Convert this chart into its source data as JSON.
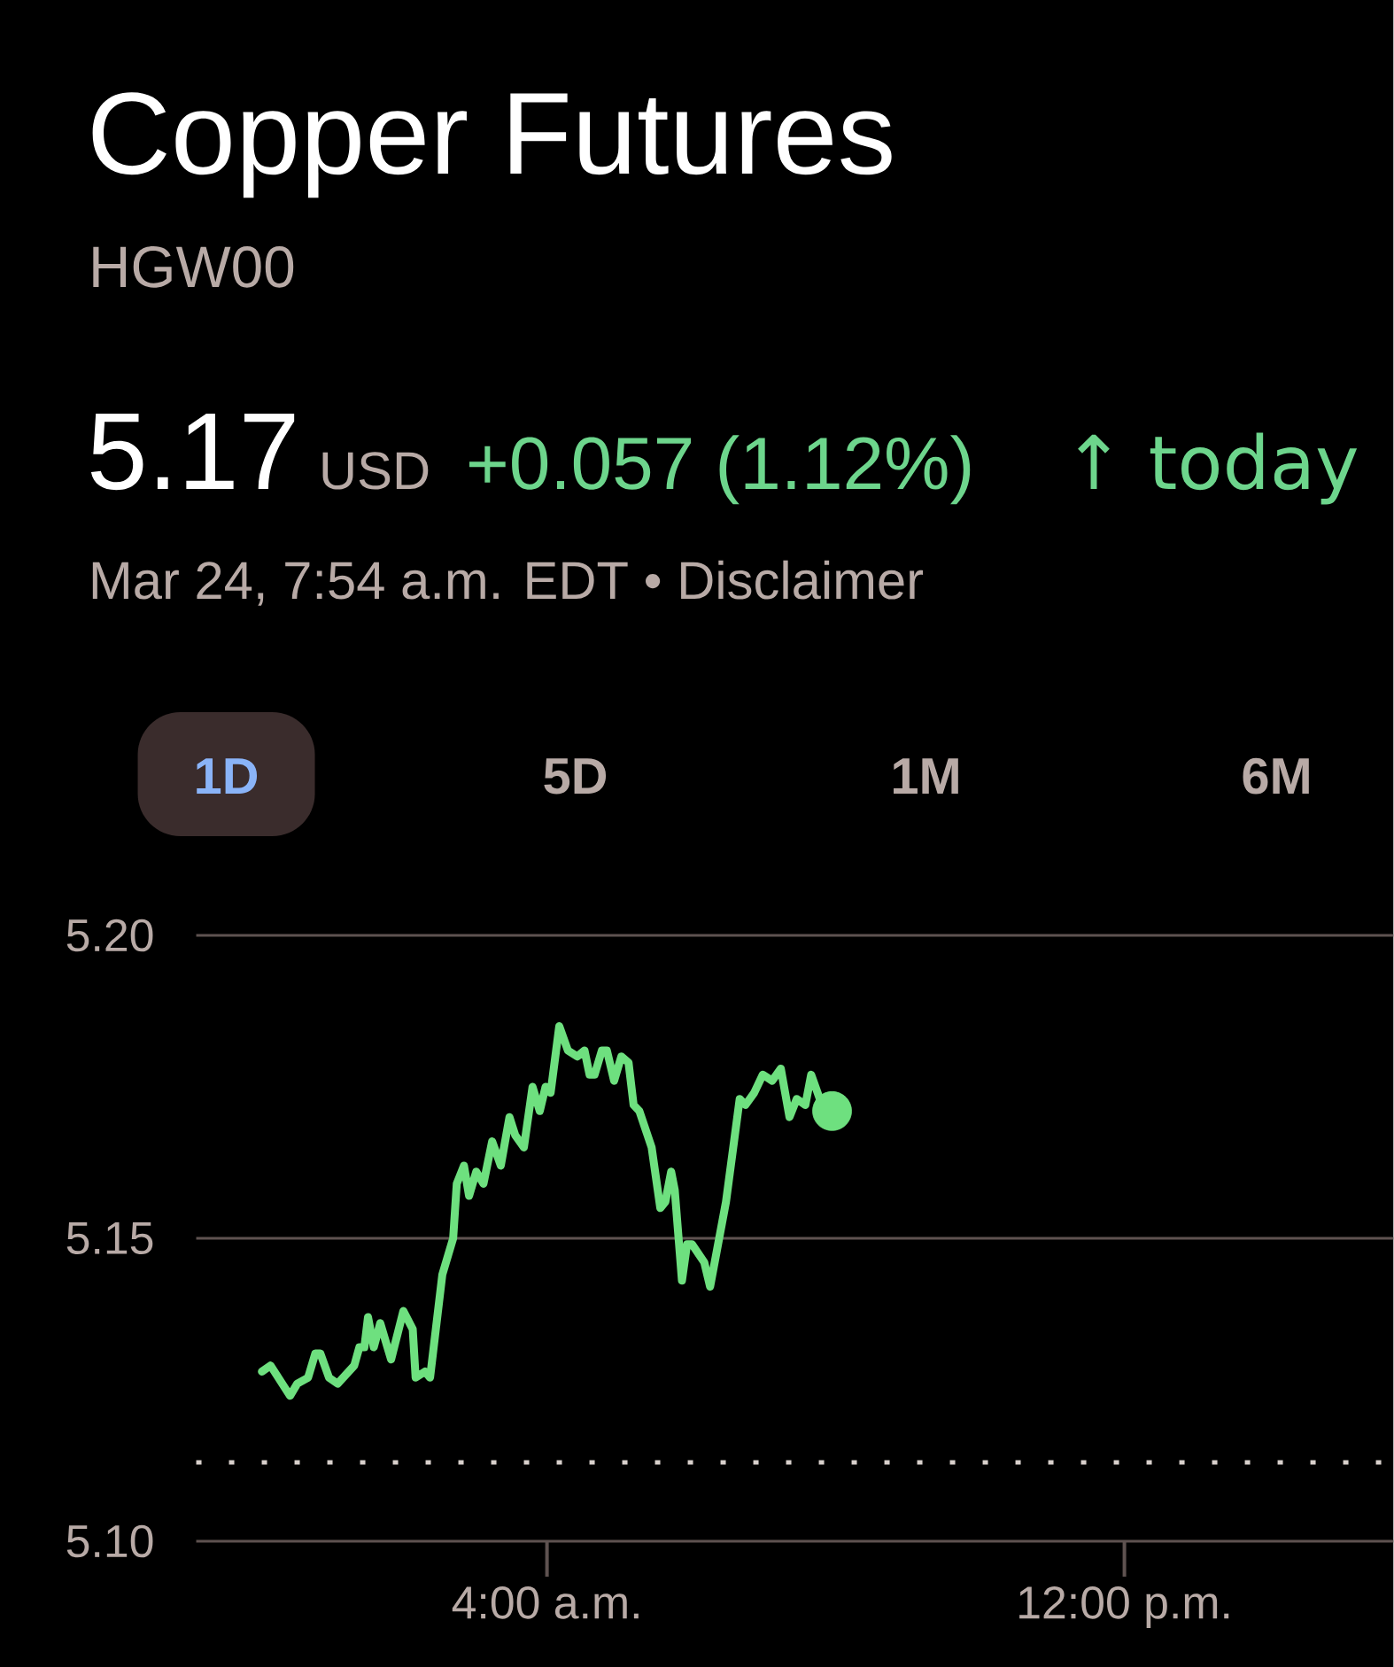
{
  "chart_data": {
    "type": "line",
    "title": "Copper Futures",
    "subtitle": "HGW00",
    "annotations": [
      "5.17",
      "USD",
      "+0.057 (1.12%)",
      "↑ today",
      "Mar 24, 7:54 a.m. EDT • Disclaimer",
      "1D",
      "5D",
      "1M",
      "6M"
    ],
    "xlim": [
      -0.86,
      15.73
    ],
    "ylim": [
      5.1,
      5.2
    ],
    "xticks": [
      {
        "value": 4,
        "label": "4:00 a.m."
      },
      {
        "value": 12,
        "label": "12:00 p.m."
      }
    ],
    "yticks": [
      {
        "value": 5.1,
        "label": "5.10"
      },
      {
        "value": 5.15,
        "label": "5.15"
      },
      {
        "value": 5.2,
        "label": "5.20"
      }
    ],
    "grid": "y",
    "marker": "none",
    "line_style": "solid",
    "ref_lines": [
      {
        "axis": "y",
        "value": 5.113,
        "color": "#d8d0cc",
        "line_style": "dotted"
      }
    ],
    "series": [
      {
        "color": "#6ee07f",
        "x": [
          0.05,
          0.17,
          0.44,
          0.54,
          0.69,
          0.79,
          0.86,
          0.98,
          1.1,
          1.33,
          1.4,
          1.47,
          1.52,
          1.6,
          1.69,
          1.84,
          2.01,
          2.14,
          2.18,
          2.31,
          2.38,
          2.55,
          2.7,
          2.75,
          2.85,
          2.92,
          3.02,
          3.12,
          3.24,
          3.36,
          3.48,
          3.56,
          3.68,
          3.8,
          3.9,
          3.98,
          4.05,
          4.17,
          4.29,
          4.42,
          4.52,
          4.59,
          4.66,
          4.76,
          4.83,
          4.93,
          5.03,
          5.13,
          5.2,
          5.28,
          5.45,
          5.57,
          5.64,
          5.72,
          5.77,
          5.87,
          5.94,
          6.01,
          6.18,
          6.26,
          6.48,
          6.67,
          6.75,
          6.87,
          6.99,
          7.12,
          7.24,
          7.36,
          7.46,
          7.58,
          7.66,
          7.78,
          7.95
        ],
        "values": [
          5.128,
          5.129,
          5.124,
          5.126,
          5.127,
          5.131,
          5.131,
          5.127,
          5.126,
          5.129,
          5.132,
          5.132,
          5.137,
          5.132,
          5.136,
          5.13,
          5.138,
          5.135,
          5.127,
          5.128,
          5.127,
          5.144,
          5.15,
          5.159,
          5.162,
          5.157,
          5.161,
          5.159,
          5.166,
          5.162,
          5.17,
          5.167,
          5.165,
          5.175,
          5.171,
          5.175,
          5.174,
          5.185,
          5.181,
          5.18,
          5.181,
          5.177,
          5.177,
          5.181,
          5.181,
          5.176,
          5.18,
          5.179,
          5.172,
          5.171,
          5.165,
          5.155,
          5.156,
          5.161,
          5.158,
          5.143,
          5.149,
          5.149,
          5.146,
          5.142,
          5.156,
          5.173,
          5.172,
          5.174,
          5.177,
          5.176,
          5.178,
          5.17,
          5.173,
          5.172,
          5.177,
          5.173,
          5.171
        ]
      },
      {
        "type": "scatter",
        "color": "#6ee07f",
        "x": [
          7.95
        ],
        "values": [
          5.171
        ]
      }
    ]
  }
}
